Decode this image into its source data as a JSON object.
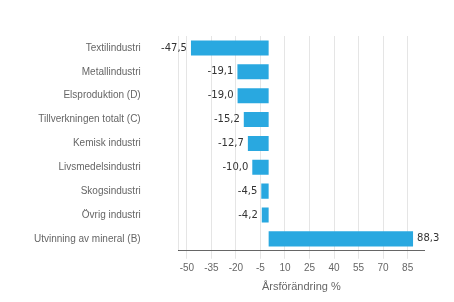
{
  "chart_data": {
    "type": "bar",
    "orientation": "horizontal",
    "categories": [
      "Textilindustri",
      "Metallindustri",
      "Elsproduktion (D)",
      "Tillverkningen totalt (C)",
      "Kemisk industri",
      "Livsmedelsindustri",
      "Skogsindustri",
      "Övrig industri",
      "Utvinning av mineral (B)"
    ],
    "values": [
      -47.5,
      -19.1,
      -19.0,
      -15.2,
      -12.7,
      -10.0,
      -4.5,
      -4.2,
      88.3
    ],
    "value_labels": [
      "-47,5",
      "-19,1",
      "-19,0",
      "-15,2",
      "-12,7",
      "-10,0",
      "-4,5",
      "-4,2",
      "88,3"
    ],
    "data_labels": true,
    "color": "#29a8e0",
    "xlabel": "Årsförändring %",
    "xlim": [
      -55,
      95
    ],
    "xticks": [
      -50,
      -35,
      -20,
      -5,
      10,
      25,
      40,
      55,
      70,
      85
    ],
    "grid": true
  }
}
